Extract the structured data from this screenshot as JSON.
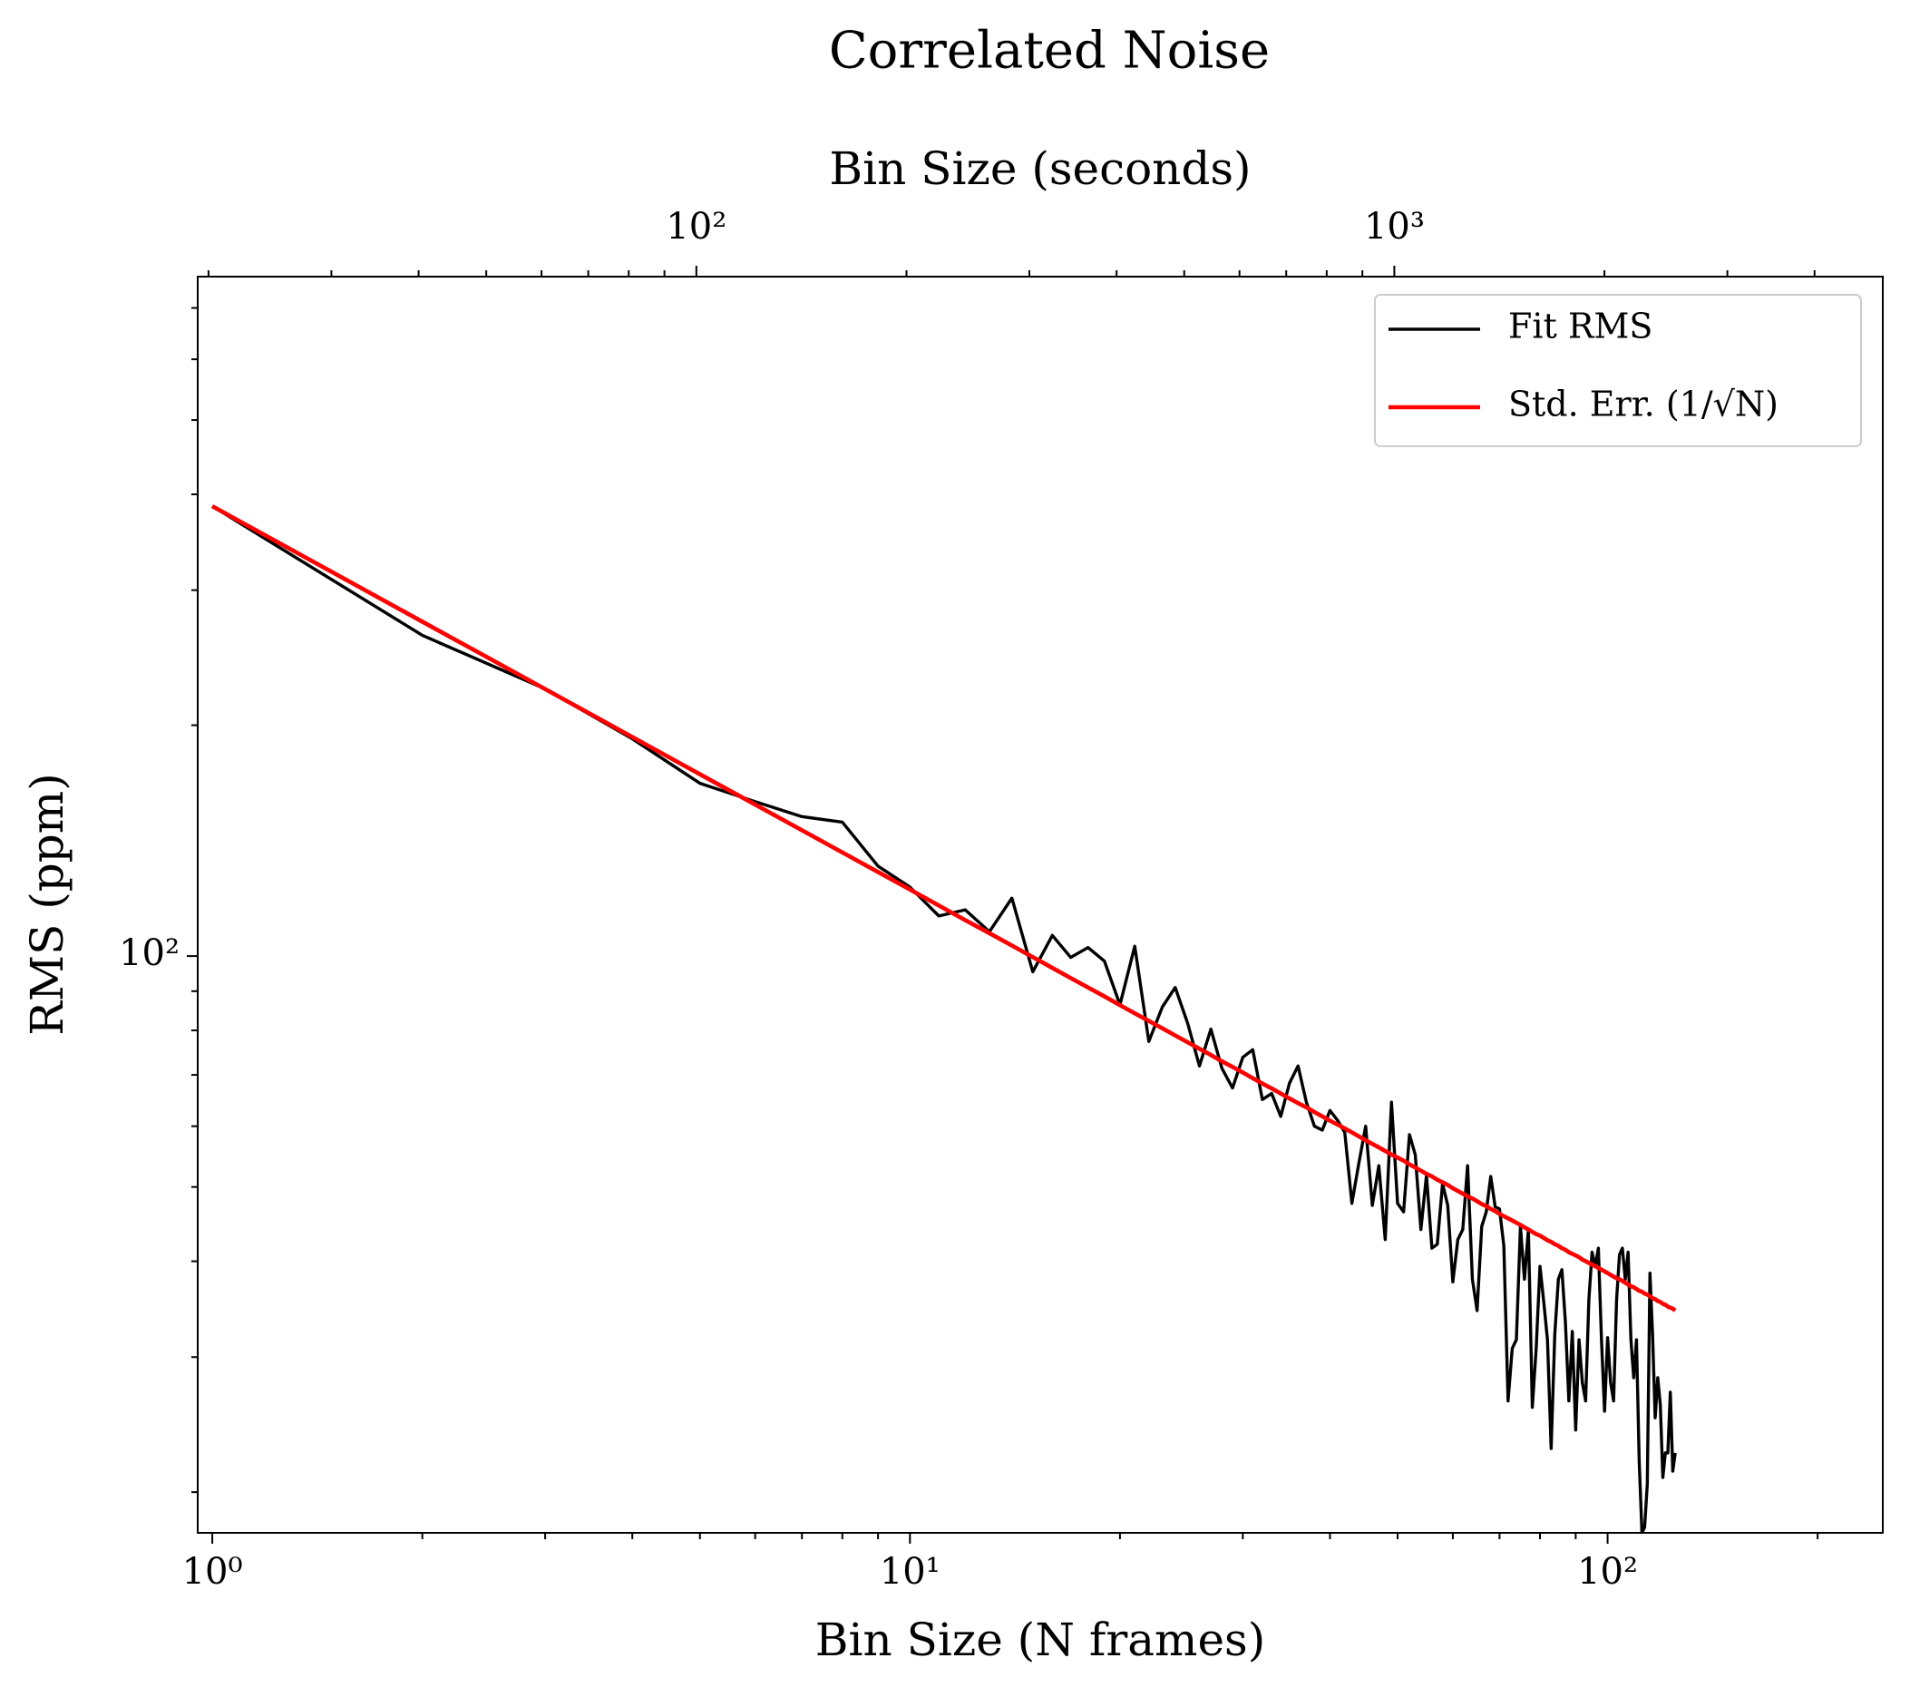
{
  "chart_data": {
    "type": "line",
    "title": "Correlated Noise",
    "xlabel": "Bin Size (N frames)",
    "ylabel": "RMS (ppm)",
    "x2label": "Bin Size (seconds)",
    "xscale": "log",
    "yscale": "log",
    "x2scale": "log",
    "legend": "upper right",
    "xlim": [
      0.953,
      248
    ],
    "ylim": [
      17.7,
      769
    ],
    "x2lim": [
      19.3,
      5010
    ],
    "xticks": [
      {
        "value": 1,
        "label": "10⁰"
      },
      {
        "value": 10,
        "label": "10¹"
      },
      {
        "value": 100,
        "label": "10²"
      }
    ],
    "xminorticks": [
      2,
      3,
      4,
      5,
      6,
      7,
      8,
      9,
      20,
      30,
      40,
      50,
      60,
      70,
      80,
      90,
      200
    ],
    "yticks": [
      {
        "value": 100,
        "label": "10²"
      }
    ],
    "yminorticks": [
      20,
      30,
      40,
      50,
      60,
      70,
      80,
      90,
      200,
      300,
      400,
      500,
      600,
      700
    ],
    "x2ticks": [
      {
        "value": 100,
        "label": "10²"
      },
      {
        "value": 1000,
        "label": "10³"
      }
    ],
    "x2minorticks": [
      20,
      30,
      40,
      50,
      60,
      70,
      80,
      90,
      200,
      300,
      400,
      500,
      600,
      700,
      800,
      900,
      2000,
      3000,
      4000
    ],
    "x": [
      1,
      2,
      3,
      4,
      5,
      6,
      7,
      8,
      9,
      10,
      11,
      12,
      13,
      14,
      15,
      16,
      17,
      18,
      19,
      20,
      21,
      22,
      23,
      24,
      25,
      26,
      27,
      28,
      29,
      30,
      31,
      32,
      33,
      34,
      35,
      36,
      37,
      38,
      39,
      40,
      41,
      42,
      43,
      44,
      45,
      46,
      47,
      48,
      49,
      50,
      51,
      52,
      53,
      54,
      55,
      56,
      57,
      58,
      59,
      60,
      61,
      62,
      63,
      64,
      65,
      66,
      67,
      68,
      69,
      70,
      71,
      72,
      73,
      74,
      75,
      76,
      77,
      78,
      79,
      80,
      81,
      82,
      83,
      84,
      85,
      86,
      87,
      88,
      89,
      90,
      91,
      92,
      93,
      94,
      95,
      96,
      97,
      98,
      99,
      100,
      101,
      102,
      103,
      104,
      105,
      106,
      107,
      108,
      109,
      110,
      111,
      112,
      113,
      114,
      115,
      116,
      117,
      118,
      119,
      120,
      121,
      122,
      123,
      124,
      125
    ],
    "series": [
      {
        "name": "Fit RMS",
        "color": "#000000",
        "values": [
          386,
          262,
          223,
          192,
          168,
          159,
          152,
          149.5,
          131,
          123,
          112.8,
          114.9,
          107.6,
          119,
          95.4,
          106.4,
          99.6,
          102.6,
          98.5,
          86.4,
          103,
          77.4,
          85.8,
          91,
          81.8,
          71.9,
          80.3,
          71.4,
          67.3,
          73.8,
          75.5,
          65.0,
          66.2,
          61.8,
          68.3,
          71.9,
          64.5,
          60,
          59.3,
          62.9,
          61.1,
          58.9,
          47.6,
          53.7,
          60,
          47.3,
          53.3,
          42.7,
          64.5,
          47.6,
          46.4,
          58.5,
          55.1,
          44,
          51.8,
          41.6,
          42.1,
          50.5,
          47.3,
          37.6,
          42.7,
          44.0,
          53.3,
          37.9,
          34.5,
          44.4,
          46.4,
          51.6,
          47.1,
          46.8,
          41.9,
          26.3,
          30.8,
          31.6,
          44.4,
          37.9,
          44,
          25.8,
          30.8,
          39.4,
          35.4,
          31.6,
          22.8,
          32.1,
          37.9,
          39,
          33.3,
          26.3,
          32.4,
          24.1,
          31.6,
          27.8,
          26.3,
          35.6,
          41.1,
          39.4,
          41.6,
          31.6,
          25.5,
          31.8,
          27.8,
          26.3,
          35.6,
          40.8,
          41.6,
          37.9,
          41.1,
          31.6,
          28.2,
          31.6,
          21.9,
          17.7,
          18.0,
          20.5,
          38.6,
          32.1,
          25,
          28.2,
          26,
          20.9,
          22.5,
          22.5,
          27.0,
          21.3,
          22.5
        ]
      },
      {
        "name": "Std. Err. (1/√N)",
        "color": "#ff0000",
        "values": [
          386.0,
          272.9,
          222.9,
          193.0,
          172.6,
          157.6,
          145.9,
          136.5,
          128.7,
          122.1,
          116.4,
          111.4,
          107.1,
          103.2,
          99.7,
          96.5,
          93.6,
          91.0,
          88.6,
          86.3,
          84.2,
          82.3,
          80.5,
          78.8,
          77.2,
          75.7,
          74.3,
          72.9,
          71.7,
          70.5,
          69.3,
          68.2,
          67.2,
          66.2,
          65.2,
          64.3,
          63.5,
          62.6,
          61.8,
          61.0,
          60.3,
          59.6,
          58.9,
          58.2,
          57.5,
          56.9,
          56.3,
          55.7,
          55.1,
          54.6,
          54.1,
          53.5,
          53.0,
          52.5,
          52.0,
          51.6,
          51.1,
          50.7,
          50.3,
          49.8,
          49.4,
          49.0,
          48.6,
          48.3,
          47.9,
          47.5,
          47.2,
          46.8,
          46.5,
          46.1,
          45.8,
          45.5,
          45.2,
          44.9,
          44.6,
          44.3,
          44.0,
          43.7,
          43.4,
          43.2,
          42.9,
          42.6,
          42.4,
          42.1,
          41.9,
          41.6,
          41.4,
          41.1,
          40.9,
          40.7,
          40.5,
          40.2,
          40.0,
          39.8,
          39.6,
          39.4,
          39.2,
          39.0,
          38.8,
          38.6,
          38.4,
          38.2,
          38.0,
          37.9,
          37.7,
          37.5,
          37.3,
          37.1,
          37.0,
          36.8,
          36.6,
          36.5,
          36.3,
          36.2,
          36.0,
          35.8,
          35.7,
          35.5,
          35.4,
          35.2,
          35.1,
          34.9,
          34.8,
          34.7,
          34.5
        ]
      }
    ]
  }
}
